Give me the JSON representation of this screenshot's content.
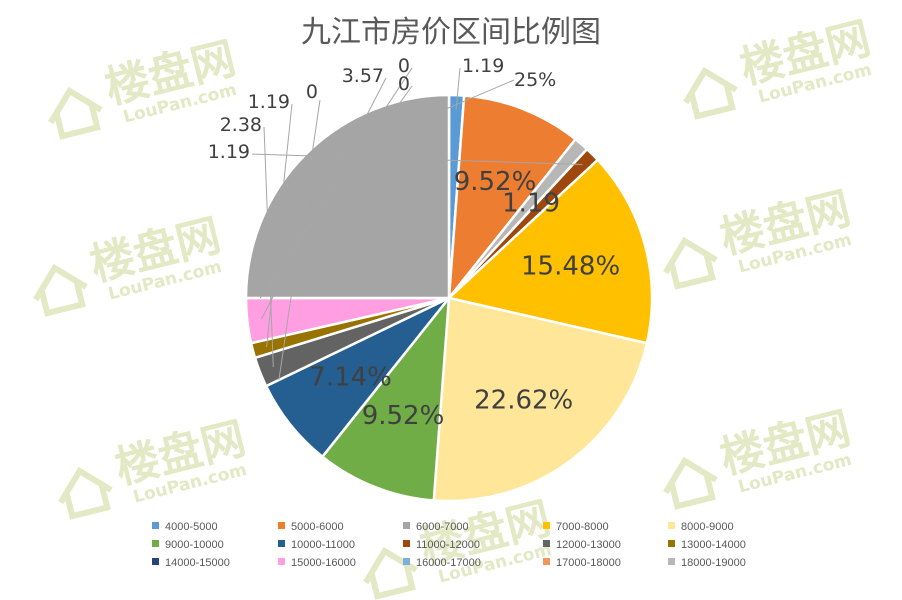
{
  "watermark": {
    "brand": "楼盘网",
    "domain": "LouPan.com"
  },
  "chart_data": {
    "type": "pie",
    "title": "九江市房价区间比例图",
    "categories": [
      "4000-5000",
      "5000-6000",
      "6000-7000",
      "7000-8000",
      "8000-9000",
      "9000-10000",
      "10000-11000",
      "11000-12000",
      "12000-13000",
      "13000-14000",
      "14000-15000",
      "15000-16000",
      "16000-17000",
      "17000-18000",
      "18000-19000"
    ],
    "values": [
      1.19,
      9.52,
      25,
      15.48,
      22.62,
      9.52,
      7.14,
      1.19,
      2.38,
      1.19,
      0,
      3.57,
      0,
      0,
      1.19
    ],
    "pie_order": [
      0,
      1,
      14,
      7,
      3,
      4,
      5,
      6,
      10,
      8,
      9,
      11,
      12,
      13,
      2
    ],
    "data_labels": [
      "1.19",
      "9.52%",
      "25%",
      "15.48%",
      "22.62%",
      "9.52%",
      "7.14%",
      "1.19",
      "2.38",
      "1.19",
      "0",
      "3.57",
      "0",
      "0",
      "1.19"
    ],
    "colors": [
      "#5b9bd5",
      "#ed7d31",
      "#a5a5a5",
      "#ffc000",
      "#ffe699",
      "#70ad47",
      "#255e91",
      "#9e480e",
      "#636363",
      "#997300",
      "#264478",
      "#ff9ee0",
      "#7cafdd",
      "#f1975a",
      "#b7b7b7"
    ],
    "legend_position": "bottom"
  }
}
